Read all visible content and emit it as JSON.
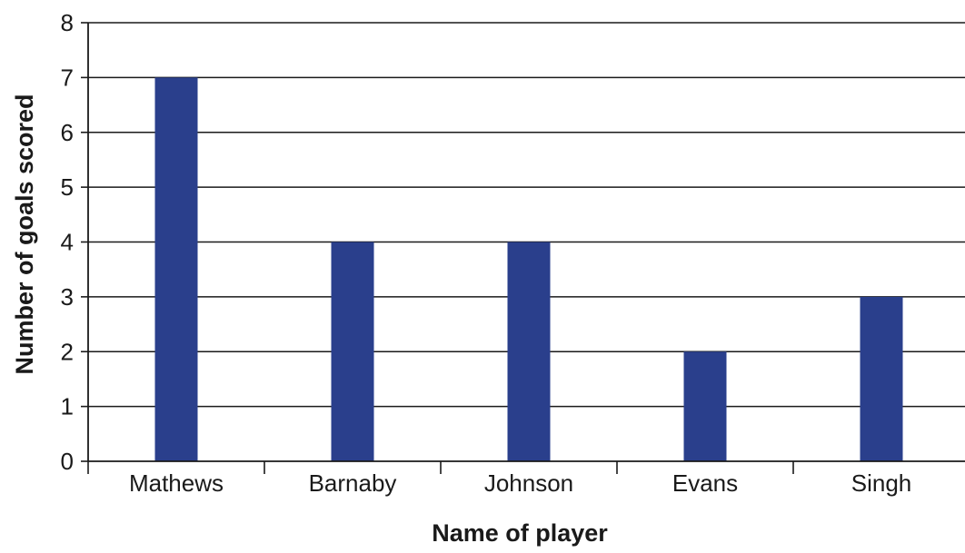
{
  "chart_data": {
    "type": "bar",
    "title": "",
    "categories": [
      "Mathews",
      "Barnaby",
      "Johnson",
      "Evans",
      "Singh"
    ],
    "values": [
      7,
      4,
      4,
      2,
      3
    ],
    "xlabel": "Name of player",
    "ylabel": "Number of goals scored",
    "ylim": [
      0,
      8
    ],
    "yticks": [
      0,
      1,
      2,
      3,
      4,
      5,
      6,
      7,
      8
    ],
    "grid": true,
    "legend": "none",
    "bar_color": "#2a3f8c"
  }
}
